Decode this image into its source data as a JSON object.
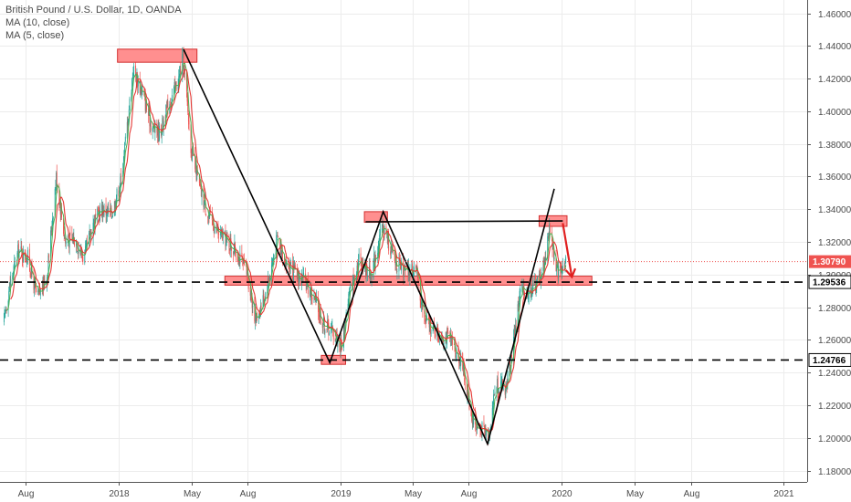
{
  "legend": {
    "symbol": "British Pound / U.S. Dollar, 1D, OANDA",
    "ma10": "MA (10, close)",
    "ma5": "MA (5, close)"
  },
  "colors": {
    "up": "#26a69a",
    "down": "#ef5350",
    "ma10": "#e53935",
    "ma5": "#4caf50",
    "zone_fill": "#ff7b7b",
    "zone_stroke": "#d32f2f",
    "pattern_line": "#000000",
    "projection_arrow": "#e02020",
    "last_price": "#ef5350",
    "grid": "#ececec"
  },
  "chart_data": {
    "type": "candlestick",
    "title": "British Pound / U.S. Dollar, 1D, OANDA",
    "xlabel": "",
    "ylabel": "",
    "x_range": [
      "2017-06-25",
      "2021-02-10"
    ],
    "ylim": [
      1.17,
      1.47
    ],
    "y_ticks": [
      "1.18000",
      "1.20000",
      "1.22000",
      "1.24000",
      "1.26000",
      "1.28000",
      "1.30000",
      "1.32000",
      "1.34000",
      "1.36000",
      "1.38000",
      "1.40000",
      "1.42000",
      "1.44000",
      "1.46000"
    ],
    "x_ticks": [
      {
        "date": "2017-08-01",
        "label": "Aug"
      },
      {
        "date": "2018-01-01",
        "label": "2018"
      },
      {
        "date": "2018-05-01",
        "label": "May"
      },
      {
        "date": "2018-08-01",
        "label": "Aug"
      },
      {
        "date": "2019-01-01",
        "label": "2019"
      },
      {
        "date": "2019-05-01",
        "label": "May"
      },
      {
        "date": "2019-08-01",
        "label": "Aug"
      },
      {
        "date": "2020-01-01",
        "label": "2020"
      },
      {
        "date": "2020-05-01",
        "label": "May"
      },
      {
        "date": "2020-08-01",
        "label": "Aug"
      },
      {
        "date": "2021-01-01",
        "label": "2021"
      }
    ],
    "price_path": [
      [
        "2017-06-25",
        1.27
      ],
      [
        "2017-07-05",
        1.293
      ],
      [
        "2017-07-20",
        1.315
      ],
      [
        "2017-08-05",
        1.31
      ],
      [
        "2017-08-20",
        1.285
      ],
      [
        "2017-09-05",
        1.3
      ],
      [
        "2017-09-20",
        1.36
      ],
      [
        "2017-10-05",
        1.32
      ],
      [
        "2017-10-20",
        1.322
      ],
      [
        "2017-11-05",
        1.31
      ],
      [
        "2017-11-20",
        1.332
      ],
      [
        "2017-12-05",
        1.34
      ],
      [
        "2017-12-20",
        1.337
      ],
      [
        "2018-01-05",
        1.358
      ],
      [
        "2018-01-25",
        1.426
      ],
      [
        "2018-02-10",
        1.41
      ],
      [
        "2018-02-25",
        1.39
      ],
      [
        "2018-03-10",
        1.387
      ],
      [
        "2018-03-25",
        1.405
      ],
      [
        "2018-04-10",
        1.42
      ],
      [
        "2018-04-17",
        1.433
      ],
      [
        "2018-05-01",
        1.375
      ],
      [
        "2018-05-15",
        1.352
      ],
      [
        "2018-05-30",
        1.335
      ],
      [
        "2018-06-15",
        1.325
      ],
      [
        "2018-07-01",
        1.32
      ],
      [
        "2018-07-15",
        1.313
      ],
      [
        "2018-08-01",
        1.3
      ],
      [
        "2018-08-15",
        1.272
      ],
      [
        "2018-09-01",
        1.29
      ],
      [
        "2018-09-20",
        1.323
      ],
      [
        "2018-10-05",
        1.306
      ],
      [
        "2018-10-20",
        1.3
      ],
      [
        "2018-11-05",
        1.295
      ],
      [
        "2018-11-20",
        1.284
      ],
      [
        "2018-12-05",
        1.27
      ],
      [
        "2018-12-20",
        1.265
      ],
      [
        "2019-01-03",
        1.255
      ],
      [
        "2019-01-15",
        1.287
      ],
      [
        "2019-02-01",
        1.31
      ],
      [
        "2019-02-20",
        1.3
      ],
      [
        "2019-03-13",
        1.33
      ],
      [
        "2019-04-01",
        1.308
      ],
      [
        "2019-04-20",
        1.3
      ],
      [
        "2019-05-05",
        1.305
      ],
      [
        "2019-05-20",
        1.272
      ],
      [
        "2019-06-10",
        1.265
      ],
      [
        "2019-07-01",
        1.26
      ],
      [
        "2019-07-20",
        1.247
      ],
      [
        "2019-08-05",
        1.215
      ],
      [
        "2019-08-15",
        1.206
      ],
      [
        "2019-09-03",
        1.203
      ],
      [
        "2019-09-15",
        1.234
      ],
      [
        "2019-10-01",
        1.23
      ],
      [
        "2019-10-15",
        1.262
      ],
      [
        "2019-10-25",
        1.29
      ],
      [
        "2019-11-10",
        1.29
      ],
      [
        "2019-11-25",
        1.297
      ],
      [
        "2019-12-05",
        1.31
      ],
      [
        "2019-12-13",
        1.33
      ],
      [
        "2019-12-23",
        1.3
      ],
      [
        "2020-01-02",
        1.305
      ],
      [
        "2020-01-08",
        1.308
      ]
    ]
  },
  "annotations": {
    "zones": [
      {
        "d1": "2017-12-30",
        "d2": "2018-05-10",
        "p1": 1.43,
        "p2": 1.438
      },
      {
        "d1": "2018-06-25",
        "d2": "2020-02-20",
        "p1": 1.2935,
        "p2": 1.299
      },
      {
        "d1": "2019-02-10",
        "d2": "2019-03-20",
        "p1": 1.332,
        "p2": 1.3385
      },
      {
        "d1": "2018-12-01",
        "d2": "2019-01-10",
        "p1": 1.245,
        "p2": 1.2505
      },
      {
        "d1": "2019-11-25",
        "d2": "2020-01-10",
        "p1": 1.3295,
        "p2": 1.336
      }
    ],
    "pattern_lines": [
      {
        "points": [
          [
            "2018-04-18",
            1.4378
          ],
          [
            "2018-12-15",
            1.246
          ],
          [
            "2019-03-13",
            1.3385
          ],
          [
            "2019-09-01",
            1.1963
          ],
          [
            "2019-12-20",
            1.3525
          ]
        ]
      },
      {
        "points": [
          [
            "2019-02-12",
            1.3323
          ],
          [
            "2020-01-03",
            1.3328
          ]
        ]
      }
    ],
    "horizontal_lines": [
      {
        "price": 1.29536,
        "label": "1.29536"
      },
      {
        "price": 1.24766,
        "label": "1.24766"
      }
    ],
    "last_price": {
      "price": 1.3079,
      "label": "1.30790"
    },
    "arrow": {
      "from": [
        "2020-01-03",
        1.3315
      ],
      "to": [
        "2020-01-18",
        1.2985
      ]
    }
  }
}
